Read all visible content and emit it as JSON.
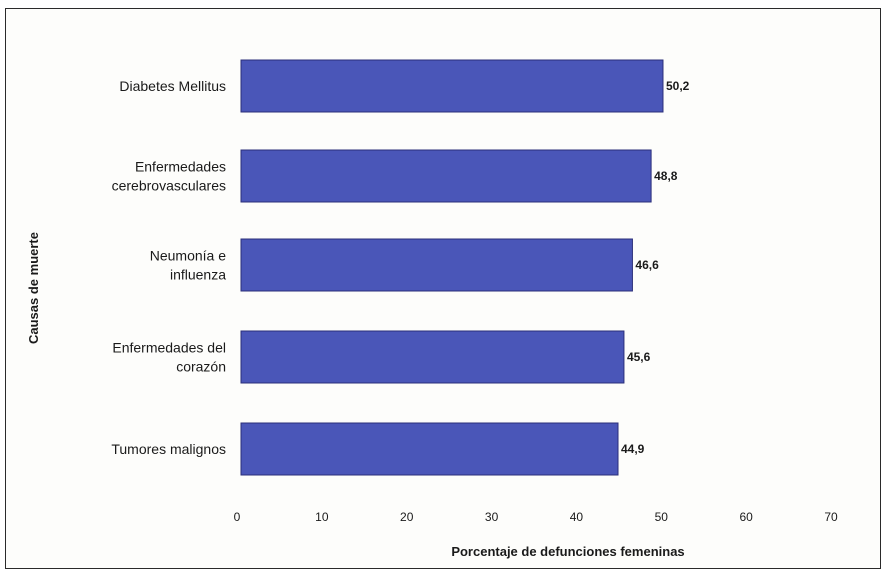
{
  "chart_data": {
    "type": "bar",
    "orientation": "horizontal",
    "categories": [
      [
        "Diabetes Mellitus"
      ],
      [
        "Enfermedades",
        "cerebrovasculares"
      ],
      [
        "Neumonía e",
        "influenza"
      ],
      [
        "Enfermedades del",
        "corazón"
      ],
      [
        "Tumores malignos"
      ]
    ],
    "values": [
      50.2,
      48.8,
      46.6,
      45.6,
      44.9
    ],
    "value_labels": [
      "50,2",
      "48,8",
      "46,6",
      "45,6",
      "44,9"
    ],
    "xlabel": "Porcentaje de defunciones femeninas",
    "ylabel": "Causas de muerte",
    "xlim": [
      0,
      70
    ],
    "xticks": [
      0,
      10,
      20,
      30,
      40,
      50,
      60,
      70
    ],
    "bar_color": "#4a56b8",
    "bar_edge_color": "#2b2f7a"
  }
}
